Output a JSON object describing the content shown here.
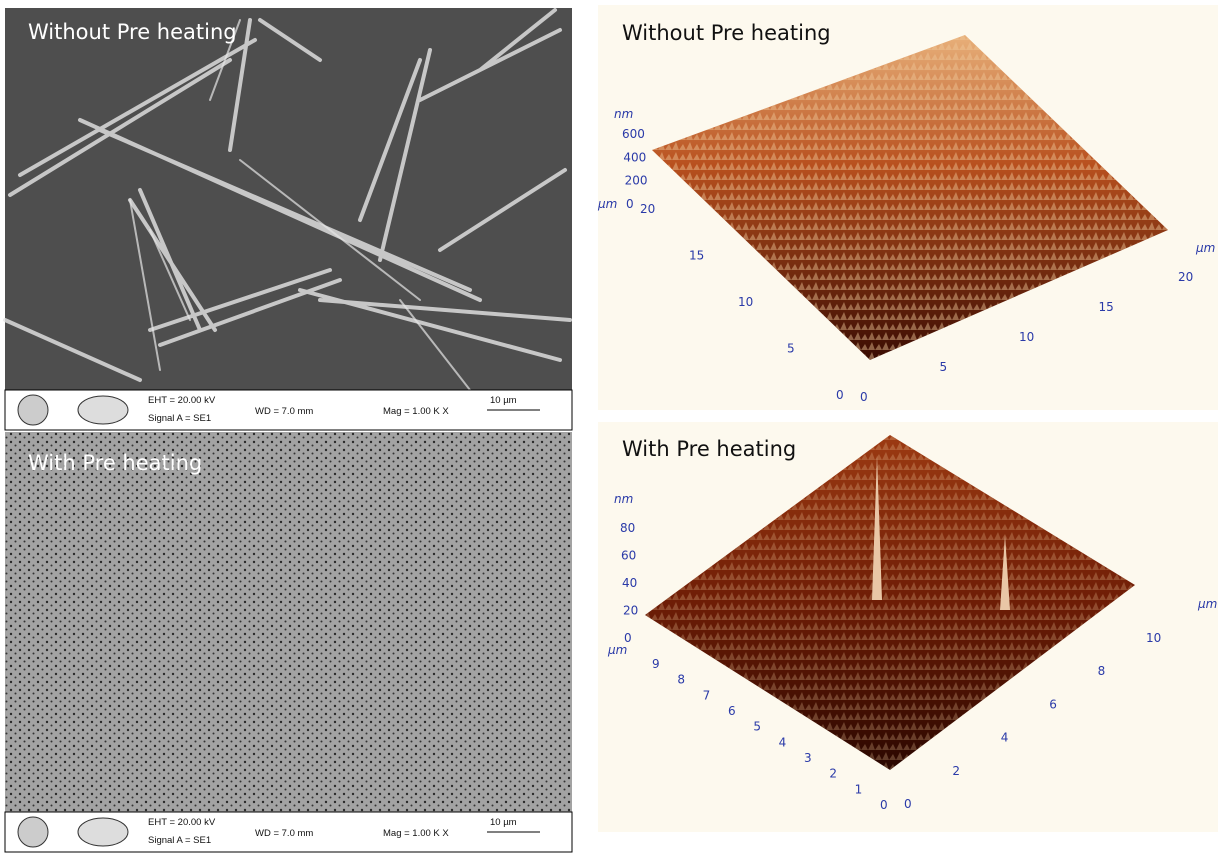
{
  "panels": {
    "sem_without": {
      "label": "Without Pre heating",
      "eht": "EHT = 20.00 kV",
      "signal": "Signal A = SE1",
      "wd": "WD = 7.0 mm",
      "mag": "Mag = 1.00 K X",
      "scale": "10 µm"
    },
    "sem_with": {
      "label": "With Pre heating",
      "eht": "EHT = 20.00 kV",
      "signal": "Signal A = SE1",
      "wd": "WD = 7.0 mm",
      "mag": "Mag = 1.00 K X",
      "scale": "10 µm"
    },
    "afm_without": {
      "label": "Without Pre heating",
      "z_unit": "nm",
      "z_ticks": [
        600,
        400,
        200,
        0
      ],
      "xy_unit_left": "µm",
      "left_ticks": [
        20,
        15,
        10,
        5,
        0
      ],
      "right_ticks": [
        0,
        5,
        10,
        15,
        20
      ],
      "xy_unit_right": "µm"
    },
    "afm_with": {
      "label": "With Pre heating",
      "z_unit": "nm",
      "z_ticks": [
        80,
        60,
        40,
        20,
        0
      ],
      "xy_unit_left": "µm",
      "left_ticks": [
        9,
        8,
        7,
        6,
        5,
        4,
        3,
        2,
        1,
        0
      ],
      "right_ticks": [
        0,
        2,
        4,
        6,
        8,
        10
      ],
      "xy_unit_right": "µm"
    }
  }
}
